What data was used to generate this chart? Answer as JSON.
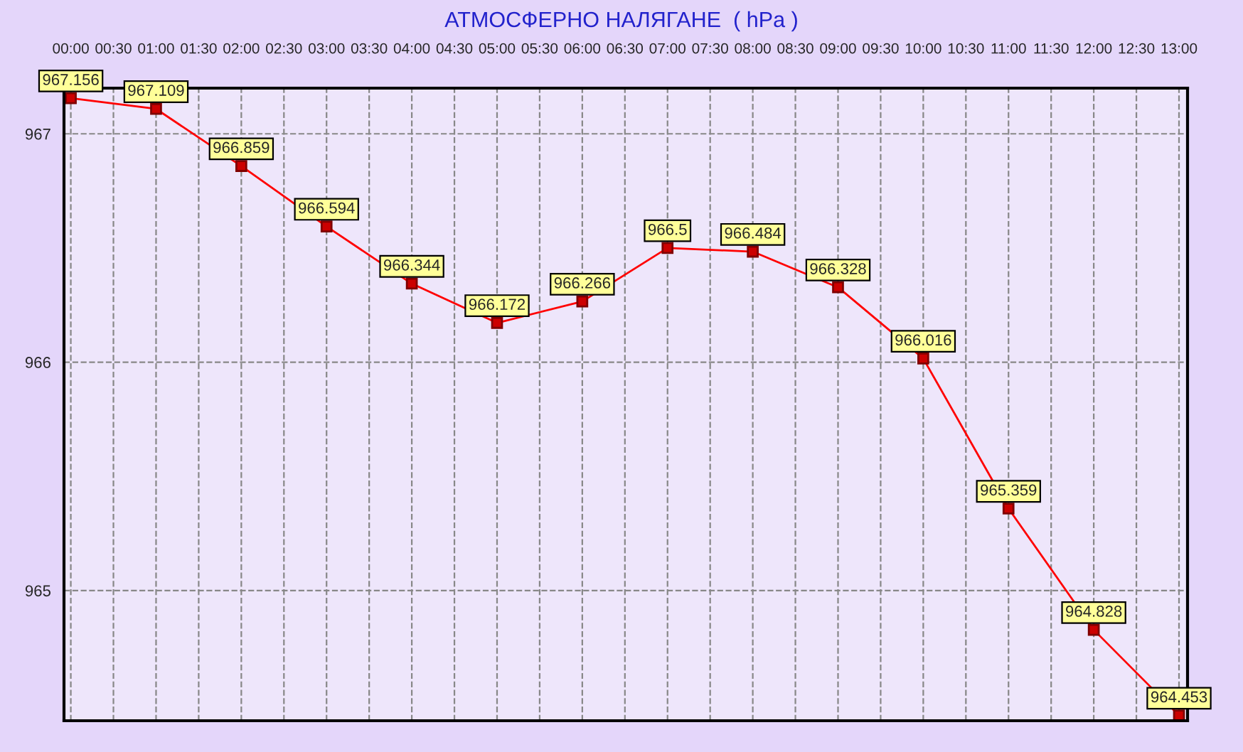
{
  "chart_data": {
    "type": "line",
    "title": "АТМОСФЕРНО НАЛЯГАНЕ  ( hPa )",
    "x": [
      0,
      1,
      2,
      3,
      4,
      5,
      6,
      7,
      8,
      9,
      10,
      11,
      12,
      13
    ],
    "series": [
      {
        "color": "#ff0000",
        "values": [
          967.156,
          967.109,
          966.859,
          966.594,
          966.344,
          966.172,
          966.266,
          966.5,
          966.484,
          966.328,
          966.016,
          965.359,
          964.828,
          964.453
        ]
      }
    ],
    "xlim": [
      -0.08,
      13.1
    ],
    "ylim": [
      964.43,
      967.2
    ],
    "xticks": [
      {
        "value": 0,
        "label": "00:00"
      },
      {
        "value": 0.5,
        "label": "00:30"
      },
      {
        "value": 1,
        "label": "01:00"
      },
      {
        "value": 1.5,
        "label": "01:30"
      },
      {
        "value": 2,
        "label": "02:00"
      },
      {
        "value": 2.5,
        "label": "02:30"
      },
      {
        "value": 3,
        "label": "03:00"
      },
      {
        "value": 3.5,
        "label": "03:30"
      },
      {
        "value": 4,
        "label": "04:00"
      },
      {
        "value": 4.5,
        "label": "04:30"
      },
      {
        "value": 5,
        "label": "05:00"
      },
      {
        "value": 5.5,
        "label": "05:30"
      },
      {
        "value": 6,
        "label": "06:00"
      },
      {
        "value": 6.5,
        "label": "06:30"
      },
      {
        "value": 7,
        "label": "07:00"
      },
      {
        "value": 7.5,
        "label": "07:30"
      },
      {
        "value": 8,
        "label": "08:00"
      },
      {
        "value": 8.5,
        "label": "08:30"
      },
      {
        "value": 9,
        "label": "09:00"
      },
      {
        "value": 9.5,
        "label": "09:30"
      },
      {
        "value": 10,
        "label": "10:00"
      },
      {
        "value": 10.5,
        "label": "10:30"
      },
      {
        "value": 11,
        "label": "11:00"
      },
      {
        "value": 11.5,
        "label": "11:30"
      },
      {
        "value": 12,
        "label": "12:00"
      },
      {
        "value": 12.5,
        "label": "12:30"
      },
      {
        "value": 13,
        "label": "13:00"
      }
    ],
    "yticks": [
      965,
      966,
      967
    ],
    "grid": true,
    "marker": "square",
    "line_style": "solid",
    "data_labels": true
  }
}
